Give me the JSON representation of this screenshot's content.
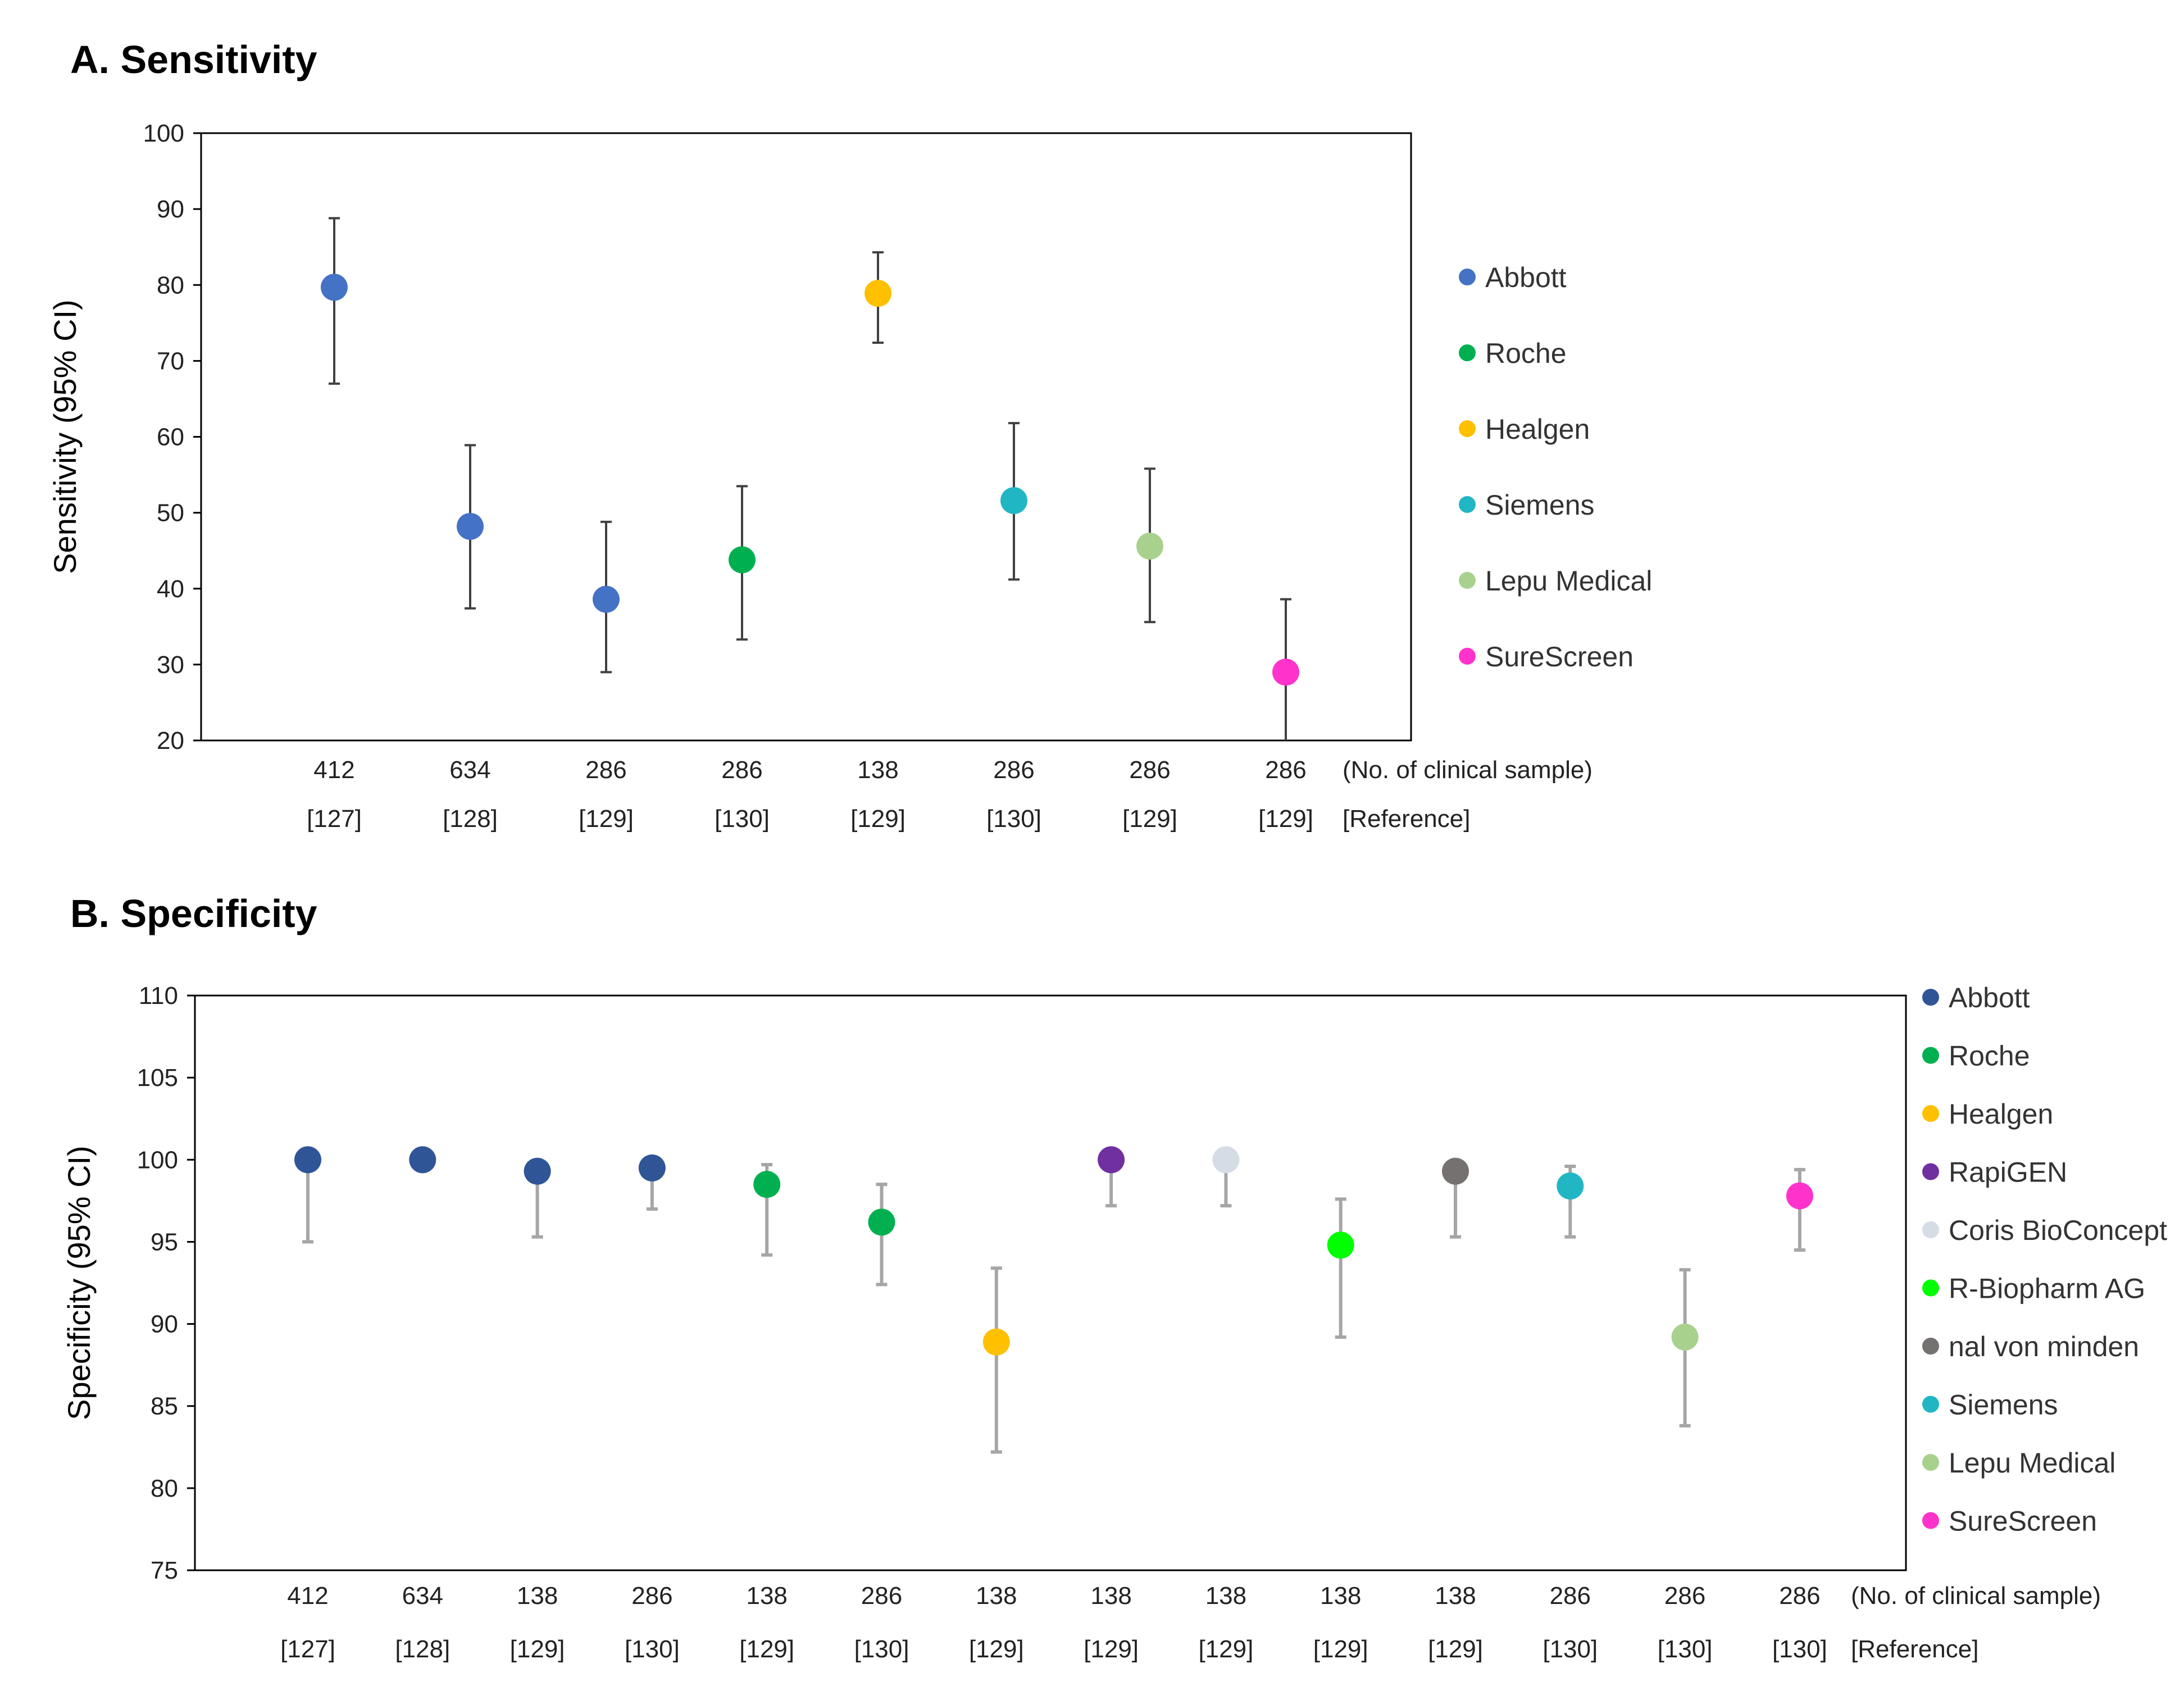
{
  "chart_data": [
    {
      "type": "scatter",
      "panel_title": "A. Sensitivity",
      "ylabel": "Sensitivity (95% CI)",
      "ylim": [
        20,
        100
      ],
      "yticks": [
        20,
        30,
        40,
        50,
        60,
        70,
        80,
        90,
        100
      ],
      "samples_caption": "(No. of clinical sample)",
      "reference_caption": "[Reference]",
      "colors": {
        "Abbott": "#4472C4",
        "Roche": "#00B050",
        "Healgen": "#FFC000",
        "Siemens": "#21B6C4",
        "Lepu Medical": "#A9D18E",
        "SureScreen": "#FF33CC"
      },
      "legend": [
        "Abbott",
        "Roche",
        "Healgen",
        "Siemens",
        "Lepu Medical",
        "SureScreen"
      ],
      "points": [
        {
          "samples": "412",
          "reference": "[127]",
          "manufacturer": "Abbott",
          "value": 79.7,
          "lower": 67.0,
          "upper": 88.8
        },
        {
          "samples": "634",
          "reference": "[128]",
          "manufacturer": "Abbott",
          "value": 48.2,
          "lower": 37.4,
          "upper": 58.9
        },
        {
          "samples": "286",
          "reference": "[129]",
          "manufacturer": "Abbott",
          "value": 38.6,
          "lower": 29.0,
          "upper": 48.8
        },
        {
          "samples": "286",
          "reference": "[130]",
          "manufacturer": "Roche",
          "value": 43.8,
          "lower": 33.3,
          "upper": 53.5
        },
        {
          "samples": "138",
          "reference": "[129]",
          "manufacturer": "Healgen",
          "value": 78.9,
          "lower": 72.4,
          "upper": 84.3
        },
        {
          "samples": "286",
          "reference": "[130]",
          "manufacturer": "Siemens",
          "value": 51.6,
          "lower": 41.2,
          "upper": 61.8
        },
        {
          "samples": "286",
          "reference": "[129]",
          "manufacturer": "Lepu Medical",
          "value": 45.6,
          "lower": 35.6,
          "upper": 55.8
        },
        {
          "samples": "286",
          "reference": "[129]",
          "manufacturer": "SureScreen",
          "value": 29.0,
          "lower": 20.0,
          "upper": 38.6
        }
      ]
    },
    {
      "type": "scatter",
      "panel_title": "B. Specificity",
      "ylabel": "Specificity (95% CI)",
      "ylim": [
        75,
        110
      ],
      "yticks": [
        75,
        80,
        85,
        90,
        95,
        100,
        105,
        110
      ],
      "samples_caption": "(No. of clinical sample)",
      "reference_caption": "[Reference]",
      "colors": {
        "Abbott": "#2F5597",
        "Roche": "#00B050",
        "Healgen": "#FFC000",
        "RapiGEN": "#7030A0",
        "Coris BioConcept": "#D6DCE5",
        "R-Biopharm AG": "#00FF00",
        "nal von minden": "#767171",
        "Siemens": "#21B6C4",
        "Lepu Medical": "#A9D18E",
        "SureScreen": "#FF33CC"
      },
      "legend": [
        "Abbott",
        "Roche",
        "Healgen",
        "RapiGEN",
        "Coris BioConcept",
        "R-Biopharm AG",
        "nal von minden",
        "Siemens",
        "Lepu Medical",
        "SureScreen"
      ],
      "points": [
        {
          "samples": "412",
          "reference": "[127]",
          "manufacturer": "Abbott",
          "value": 100.0,
          "lower": 95.0,
          "upper": 100.0
        },
        {
          "samples": "634",
          "reference": "[128]",
          "manufacturer": "Abbott",
          "value": 100.0,
          "lower": 100.0,
          "upper": 100.0
        },
        {
          "samples": "138",
          "reference": "[129]",
          "manufacturer": "Abbott",
          "value": 99.3,
          "lower": 95.3,
          "upper": 99.9
        },
        {
          "samples": "286",
          "reference": "[130]",
          "manufacturer": "Abbott",
          "value": 99.5,
          "lower": 97.0,
          "upper": 99.9
        },
        {
          "samples": "138",
          "reference": "[129]",
          "manufacturer": "Roche",
          "value": 98.5,
          "lower": 94.2,
          "upper": 99.7
        },
        {
          "samples": "286",
          "reference": "[130]",
          "manufacturer": "Roche",
          "value": 96.2,
          "lower": 92.4,
          "upper": 98.5
        },
        {
          "samples": "138",
          "reference": "[129]",
          "manufacturer": "Healgen",
          "value": 88.9,
          "lower": 82.2,
          "upper": 93.4
        },
        {
          "samples": "138",
          "reference": "[129]",
          "manufacturer": "RapiGEN",
          "value": 100.0,
          "lower": 97.2,
          "upper": 100.0
        },
        {
          "samples": "138",
          "reference": "[129]",
          "manufacturer": "Coris BioConcept",
          "value": 100.0,
          "lower": 97.2,
          "upper": 100.0
        },
        {
          "samples": "138",
          "reference": "[129]",
          "manufacturer": "R-Biopharm AG",
          "value": 94.8,
          "lower": 89.2,
          "upper": 97.6
        },
        {
          "samples": "138",
          "reference": "[129]",
          "manufacturer": "nal von minden",
          "value": 99.3,
          "lower": 95.3,
          "upper": 99.9
        },
        {
          "samples": "286",
          "reference": "[130]",
          "manufacturer": "Siemens",
          "value": 98.4,
          "lower": 95.3,
          "upper": 99.6
        },
        {
          "samples": "286",
          "reference": "[130]",
          "manufacturer": "Lepu Medical",
          "value": 89.2,
          "lower": 83.8,
          "upper": 93.3
        },
        {
          "samples": "286",
          "reference": "[130]",
          "manufacturer": "SureScreen",
          "value": 97.8,
          "lower": 94.5,
          "upper": 99.4
        }
      ]
    }
  ]
}
